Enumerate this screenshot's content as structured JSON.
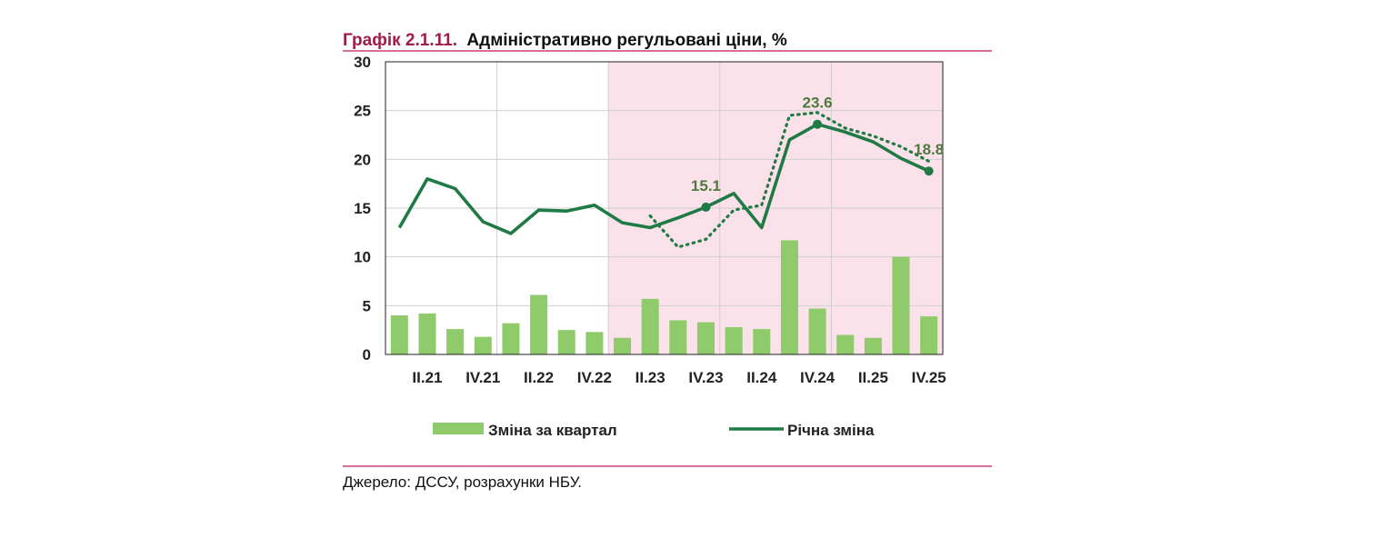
{
  "header": {
    "prefix": "Графік 2.1.11.",
    "title": "Адміністративно регульовані ціни, %"
  },
  "source": "Джерело: ДССУ, розрахунки НБУ.",
  "colors": {
    "bars": "#8fca6b",
    "annual_line": "#1f7a45",
    "forecast_shade": "#fbe2ea",
    "rule": "#c2185b",
    "grid": "#cfcfcf"
  },
  "chart_data": {
    "type": "bar+line",
    "ylim": [
      0,
      30
    ],
    "yticks": [
      "0",
      "5",
      "10",
      "15",
      "20",
      "25",
      "30"
    ],
    "ytick_values": [
      0,
      5,
      10,
      15,
      20,
      25,
      30
    ],
    "categories": [
      "I.21",
      "II.21",
      "III.21",
      "IV.21",
      "I.22",
      "II.22",
      "III.22",
      "IV.22",
      "I.23",
      "II.23",
      "III.23",
      "IV.23",
      "I.24",
      "II.24",
      "III.24",
      "IV.24",
      "I.25",
      "II.25",
      "III.25",
      "IV.25"
    ],
    "x_labels": [
      "II.21",
      "IV.21",
      "II.22",
      "IV.22",
      "II.23",
      "IV.23",
      "II.24",
      "IV.24",
      "II.25",
      "IV.25"
    ],
    "x_label_values": [
      "II.21",
      "IV.21",
      "II.22",
      "IV.22",
      "II.23",
      "IV.23",
      "II.24",
      "IV.24",
      "II.25",
      "IV.25"
    ],
    "forecast_start": "I.23",
    "grid": true,
    "series": [
      {
        "name": "Зміна за квартал",
        "kind": "bar",
        "values": [
          4.0,
          4.2,
          2.6,
          1.8,
          3.2,
          6.1,
          2.5,
          2.3,
          1.7,
          5.7,
          3.5,
          3.3,
          2.8,
          2.6,
          11.7,
          4.7,
          2.0,
          1.7,
          10.0,
          3.9
        ]
      },
      {
        "name": "Річна зміна",
        "kind": "line",
        "values": [
          13.0,
          18.0,
          17.0,
          13.6,
          12.4,
          14.8,
          14.7,
          15.3,
          13.5,
          13.0,
          14.0,
          15.1,
          16.5,
          13.0,
          22.0,
          23.6,
          22.8,
          21.8,
          20.1,
          18.8
        ]
      },
      {
        "kind": "line-dotted",
        "x": [
          "II.23",
          "III.23",
          "IV.23",
          "I.24",
          "II.24",
          "III.24",
          "IV.24",
          "I.25",
          "II.25",
          "III.25",
          "IV.25"
        ],
        "values": [
          14.2,
          11.0,
          11.8,
          14.8,
          15.3,
          24.5,
          24.8,
          23.2,
          22.4,
          21.3,
          19.8
        ]
      }
    ],
    "annotations": [
      {
        "text": "15.1",
        "x": "IV.23",
        "y": 15.1
      },
      {
        "text": "23.6",
        "x": "IV.24",
        "y": 23.6
      },
      {
        "text": "18.8",
        "x": "IV.25",
        "y": 18.8
      }
    ],
    "legend": [
      "Зміна за квартал",
      "Річна зміна"
    ],
    "legend_position": "bottom"
  }
}
